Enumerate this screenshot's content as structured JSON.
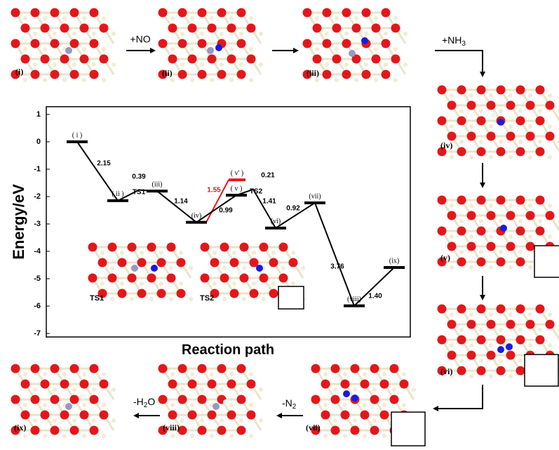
{
  "chart_data": {
    "type": "energy-profile",
    "ylabel": "Energy/eV",
    "xlabel": "Reaction path",
    "ylim": [
      -7,
      1
    ],
    "yticks": [
      1,
      0,
      -1,
      -2,
      -3,
      -4,
      -5,
      -6,
      -7
    ],
    "categories": [
      "( i )",
      "( ii )",
      "TS1",
      "(iii)",
      "(iv)",
      "( v )",
      "TS2",
      "(vi)",
      "(vii)",
      "(viii)",
      "(ix)"
    ],
    "values": [
      0,
      -2.15,
      -1.76,
      -1.8,
      -2.94,
      -1.95,
      -1.74,
      -3.15,
      -2.23,
      -5.99,
      -4.59
    ],
    "color": "#000000",
    "steps": [
      2.15,
      0.39,
      1.14,
      0.99,
      0.21,
      1.41,
      0.92,
      3.76,
      1.4
    ],
    "step_labels": [
      "2.15",
      "0.39",
      "1.14",
      "0.99",
      "0.21",
      "1.41",
      "0.92",
      "3.76",
      "1.40"
    ],
    "branch": {
      "label": "( v' )",
      "value": -1.39,
      "step": 1.55,
      "color": "#e8161b"
    },
    "insets": [
      "TS1",
      "TS2"
    ]
  },
  "figure": {
    "panels": [
      "(i)",
      "(ii)",
      "(iii)",
      "(iv)",
      "(v)",
      "(vi)",
      "(vii)",
      "(viii)",
      "(ix)"
    ],
    "arrows": [
      {
        "text": "+NO"
      },
      {
        "text": "+NH",
        "sub": "3"
      },
      {
        "text": "-N",
        "sub": "2"
      },
      {
        "text": "-H",
        "sub": "2",
        "post": "O"
      }
    ]
  }
}
